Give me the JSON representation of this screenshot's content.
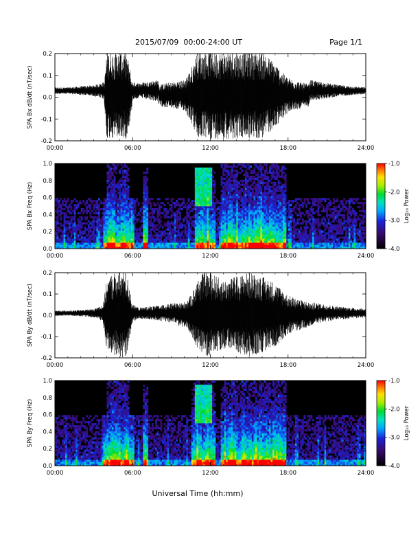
{
  "header": {
    "title": "2015/07/09  00:00-24:00 UT",
    "page": "Page 1/1"
  },
  "x_axis_label": "Universal Time (hh:mm)",
  "colorbar": {
    "label": "Log₁₀ Power",
    "ticks": [
      "-1.0",
      "-2.0",
      "-3.0",
      "-4.0"
    ],
    "range": [
      -4.0,
      -1.0
    ],
    "colormap": [
      "#000000",
      "#3a0a6e",
      "#1a22d8",
      "#00a8ff",
      "#00e0c0",
      "#00dc30",
      "#a8ee00",
      "#ffe000",
      "#ff7a00",
      "#ff0000"
    ]
  },
  "chart_data": [
    {
      "type": "line",
      "panel": "bx_timeseries",
      "ylabel": "SPA Bx dB/dt (nT/sec)",
      "xlim": [
        0,
        24
      ],
      "ylim": [
        -0.2,
        0.2
      ],
      "x_ticks": [
        "00:00",
        "06:00",
        "12:00",
        "18:00",
        "24:00"
      ],
      "y_ticks": [
        "0.2",
        "0.1",
        "0.0",
        "-0.1",
        "-0.2"
      ],
      "envelope": {
        "hours": [
          0,
          1,
          2,
          3,
          3.8,
          4.0,
          4.5,
          5.0,
          5.5,
          5.8,
          6.0,
          6.5,
          7.0,
          8.0,
          9.0,
          10.0,
          10.5,
          11.0,
          11.5,
          12.0,
          13.0,
          14.0,
          15.0,
          16.0,
          17.0,
          17.5,
          18.0,
          19.0,
          20.0,
          21.0,
          22.0,
          23.0,
          24.0
        ],
        "amplitude": [
          0.015,
          0.015,
          0.02,
          0.025,
          0.04,
          0.2,
          0.2,
          0.2,
          0.2,
          0.12,
          0.04,
          0.035,
          0.04,
          0.05,
          0.06,
          0.07,
          0.12,
          0.2,
          0.2,
          0.2,
          0.2,
          0.2,
          0.2,
          0.2,
          0.15,
          0.11,
          0.08,
          0.06,
          0.045,
          0.035,
          0.025,
          0.02,
          0.015
        ]
      },
      "baseline": 0.03
    },
    {
      "type": "heatmap",
      "panel": "bx_spectrogram",
      "ylabel": "SPA Bx Freq (Hz)",
      "xlim": [
        0,
        24
      ],
      "ylim": [
        0.0,
        1.0
      ],
      "x_ticks": [
        "00:00",
        "06:00",
        "12:00",
        "18:00",
        "24:00"
      ],
      "y_ticks": [
        "1.0",
        "0.8",
        "0.6",
        "0.4",
        "0.2",
        "0.0"
      ],
      "color_range": [
        -4.0,
        -1.0
      ],
      "bursts": [
        {
          "t0": 4.0,
          "t1": 5.7,
          "fmax": 1.0
        },
        {
          "t0": 6.8,
          "t1": 7.2,
          "fmax": 0.95
        },
        {
          "t0": 10.8,
          "t1": 12.4,
          "fmax": 0.95
        },
        {
          "t0": 12.8,
          "t1": 17.8,
          "fmax": 1.0
        }
      ]
    },
    {
      "type": "line",
      "panel": "by_timeseries",
      "ylabel": "SPA By dB/dt (nT/sec)",
      "xlim": [
        0,
        24
      ],
      "ylim": [
        -0.2,
        0.2
      ],
      "x_ticks": [
        "00:00",
        "06:00",
        "12:00",
        "18:00",
        "24:00"
      ],
      "y_ticks": [
        "0.2",
        "0.1",
        "0.0",
        "-0.1",
        "-0.2"
      ],
      "envelope": {
        "hours": [
          0,
          1,
          2,
          3,
          3.7,
          4.0,
          4.5,
          5.0,
          5.5,
          5.8,
          6.0,
          6.5,
          7.0,
          8.0,
          9.0,
          10.0,
          10.5,
          11.0,
          11.5,
          12.0,
          13.0,
          14.0,
          15.0,
          16.0,
          17.0,
          17.5,
          18.0,
          19.0,
          20.0,
          21.0,
          22.0,
          23.0,
          24.0
        ],
        "amplitude": [
          0.012,
          0.012,
          0.015,
          0.02,
          0.04,
          0.16,
          0.2,
          0.2,
          0.2,
          0.12,
          0.04,
          0.025,
          0.03,
          0.035,
          0.045,
          0.06,
          0.09,
          0.16,
          0.2,
          0.2,
          0.16,
          0.18,
          0.2,
          0.18,
          0.15,
          0.12,
          0.09,
          0.07,
          0.05,
          0.04,
          0.03,
          0.025,
          0.02
        ]
      },
      "baseline": 0.01
    },
    {
      "type": "heatmap",
      "panel": "by_spectrogram",
      "ylabel": "SPA By Freq (Hz)",
      "xlim": [
        0,
        24
      ],
      "ylim": [
        0.0,
        1.0
      ],
      "x_ticks": [
        "00:00",
        "06:00",
        "12:00",
        "18:00",
        "24:00"
      ],
      "y_ticks": [
        "1.0",
        "0.8",
        "0.6",
        "0.4",
        "0.2",
        "0.0"
      ],
      "color_range": [
        -4.0,
        -1.0
      ],
      "bursts": [
        {
          "t0": 4.0,
          "t1": 5.7,
          "fmax": 1.0
        },
        {
          "t0": 6.8,
          "t1": 7.2,
          "fmax": 0.95
        },
        {
          "t0": 10.5,
          "t1": 12.4,
          "fmax": 1.0
        },
        {
          "t0": 12.8,
          "t1": 17.8,
          "fmax": 1.0
        }
      ]
    }
  ]
}
